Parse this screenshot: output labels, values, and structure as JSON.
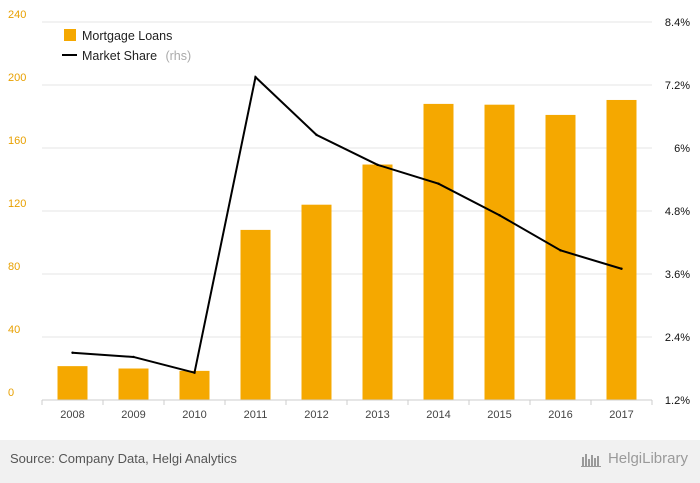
{
  "chart_data": {
    "type": "bar+line",
    "categories": [
      "2008",
      "2009",
      "2010",
      "2011",
      "2012",
      "2013",
      "2014",
      "2015",
      "2016",
      "2017"
    ],
    "series": [
      {
        "name": "Mortgage Loans",
        "type": "bar",
        "axis": "left",
        "color": "#f5a800",
        "values": [
          21.5,
          20,
          18.5,
          108,
          124,
          149.5,
          188,
          187.5,
          181,
          190.5
        ]
      },
      {
        "name": "Market Share",
        "legend_note": "(rhs)",
        "type": "line",
        "axis": "right",
        "color": "#000000",
        "values": [
          2.1,
          2.02,
          1.72,
          7.35,
          6.25,
          5.68,
          5.32,
          4.72,
          4.05,
          3.7
        ]
      }
    ],
    "left_axis": {
      "ylim": [
        0,
        240
      ],
      "ticks": [
        0,
        40,
        80,
        120,
        160,
        200,
        240
      ],
      "tick_labels": [
        "0",
        "40",
        "80",
        "120",
        "160",
        "200",
        "240"
      ],
      "color": "#e8a000"
    },
    "right_axis": {
      "ylim": [
        1.2,
        8.4
      ],
      "ticks": [
        1.2,
        2.4,
        3.6,
        4.8,
        6.0,
        7.2,
        8.4
      ],
      "tick_labels": [
        "1.2%",
        "2.4%",
        "3.6%",
        "4.8%",
        "6%",
        "7.2%",
        "8.4%"
      ]
    },
    "grid": true,
    "legend_position": "top-left"
  },
  "footer": {
    "source": "Source: Company Data, Helgi Analytics",
    "brand": "HelgiLibrary"
  }
}
